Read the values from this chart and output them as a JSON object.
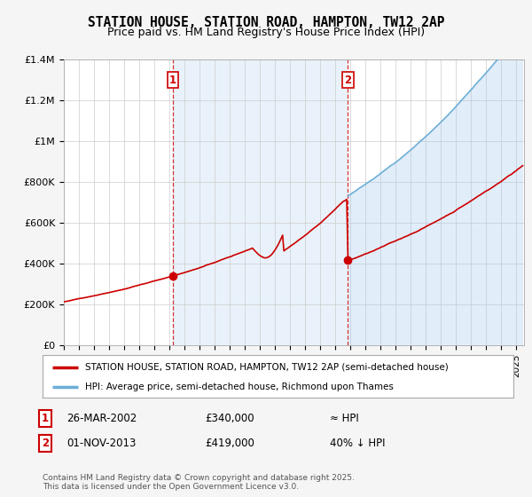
{
  "title_line1": "STATION HOUSE, STATION ROAD, HAMPTON, TW12 2AP",
  "title_line2": "Price paid vs. HM Land Registry's House Price Index (HPI)",
  "ylim": [
    0,
    1400000
  ],
  "yticks": [
    0,
    200000,
    400000,
    600000,
    800000,
    1000000,
    1200000,
    1400000
  ],
  "ytick_labels": [
    "£0",
    "£200K",
    "£400K",
    "£600K",
    "£800K",
    "£1M",
    "£1.2M",
    "£1.4M"
  ],
  "xlim_start": 1995.0,
  "xlim_end": 2025.5,
  "sale1_year": 2002.23,
  "sale1_price": 340000,
  "sale2_year": 2013.83,
  "sale2_price": 419000,
  "hpi_color": "#6baed6",
  "hpi_fill_color": "#ddeeff",
  "price_color": "#cc0000",
  "vline_color": "#cc0000",
  "bg_color": "#ffffff",
  "plot_bg_color": "#ffffff",
  "fig_bg_color": "#f5f5f5",
  "grid_color": "#cccccc",
  "legend_label_price": "STATION HOUSE, STATION ROAD, HAMPTON, TW12 2AP (semi-detached house)",
  "legend_label_hpi": "HPI: Average price, semi-detached house, Richmond upon Thames",
  "annotation1_date": "26-MAR-2002",
  "annotation1_price": "£340,000",
  "annotation1_hpi": "≈ HPI",
  "annotation2_date": "01-NOV-2013",
  "annotation2_price": "£419,000",
  "annotation2_hpi": "40% ↓ HPI",
  "footer": "Contains HM Land Registry data © Crown copyright and database right 2025.\nThis data is licensed under the Open Government Licence v3.0."
}
